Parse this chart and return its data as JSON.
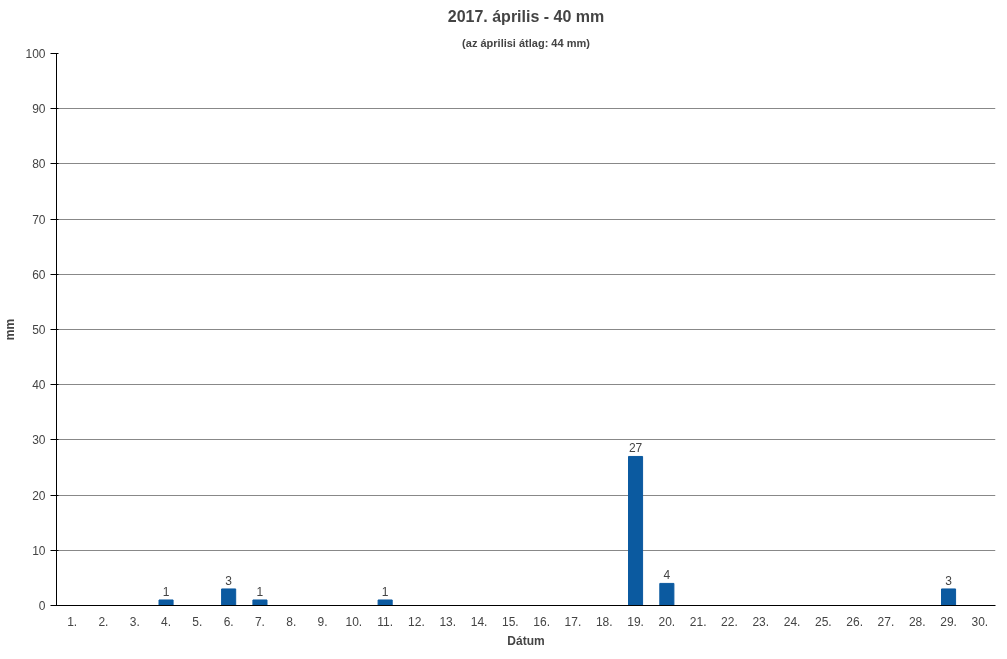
{
  "chart_data": {
    "type": "bar",
    "title": "2017. április - 40 mm",
    "subtitle": "(az áprilisi átlag: 44 mm)",
    "xlabel": "Dátum",
    "ylabel": "mm",
    "categories": [
      "1.",
      "2.",
      "3.",
      "4.",
      "5.",
      "6.",
      "7.",
      "8.",
      "9.",
      "10.",
      "11.",
      "12.",
      "13.",
      "14.",
      "15.",
      "16.",
      "17.",
      "18.",
      "19.",
      "20.",
      "21.",
      "22.",
      "23.",
      "24.",
      "25.",
      "26.",
      "27.",
      "28.",
      "29.",
      "30."
    ],
    "values": [
      0,
      0,
      0,
      1,
      0,
      3,
      1,
      0,
      0,
      0,
      1,
      0,
      0,
      0,
      0,
      0,
      0,
      0,
      27,
      4,
      0,
      0,
      0,
      0,
      0,
      0,
      0,
      0,
      3,
      0
    ],
    "value_labels": [
      null,
      null,
      null,
      "1",
      null,
      "3",
      "1",
      null,
      null,
      null,
      "1",
      null,
      null,
      null,
      null,
      null,
      null,
      null,
      "27",
      "4",
      null,
      null,
      null,
      null,
      null,
      null,
      null,
      null,
      "3",
      null
    ],
    "color": "#0b5aa0",
    "ylim": [
      0,
      100
    ],
    "yticks": [
      0,
      10,
      20,
      30,
      40,
      50,
      60,
      70,
      80,
      90,
      100
    ],
    "grid": "y"
  }
}
